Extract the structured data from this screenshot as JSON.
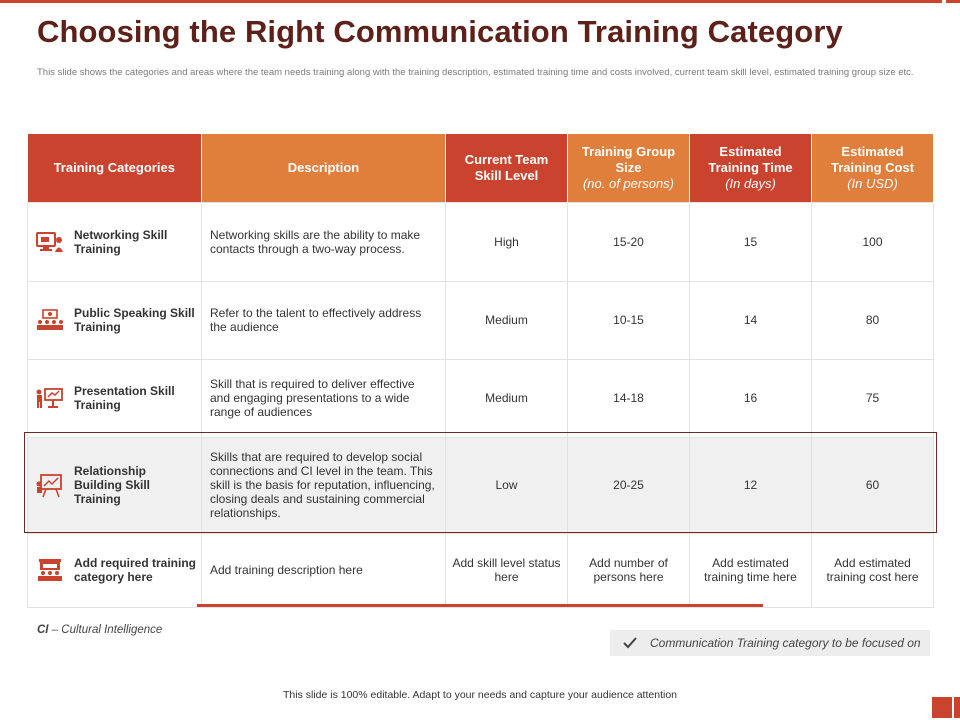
{
  "title": "Choosing the Right Communication Training Category",
  "subtitle": "This slide shows the categories and areas where the team needs training along with the training description, estimated training time and costs involved, current team skill level, estimated training group size etc.",
  "colors": {
    "accent_red": "#c9432f",
    "accent_orange": "#e07f3c",
    "title_brown": "#5e2119"
  },
  "table": {
    "headers": [
      {
        "label": "Training Categories",
        "sub": ""
      },
      {
        "label": "Description",
        "sub": ""
      },
      {
        "label": "Current Team Skill Level",
        "sub": ""
      },
      {
        "label": "Training Group Size",
        "sub": "(no. of persons)"
      },
      {
        "label": "Estimated Training Time",
        "sub": "(In days)"
      },
      {
        "label": "Estimated Training Cost",
        "sub": "(In USD)"
      }
    ],
    "rows": [
      {
        "icon": "computer-person-icon",
        "category": "Networking Skill Training",
        "description": "Networking skills are the ability to make contacts through a two-way process.",
        "skill": "High",
        "size": "15-20",
        "time": "15",
        "cost": "100"
      },
      {
        "icon": "speaker-audience-icon",
        "category": "Public Speaking Skill Training",
        "description": "Refer to the talent to effectively address the audience",
        "skill": "Medium",
        "size": "10-15",
        "time": "14",
        "cost": "80"
      },
      {
        "icon": "presenter-board-icon",
        "category": "Presentation Skill Training",
        "description": " Skill that is required to deliver effective and engaging presentations to a wide range of audiences",
        "skill": "Medium",
        "size": "14-18",
        "time": "16",
        "cost": "75"
      },
      {
        "icon": "presentation-easel-icon",
        "category": "Relationship Building Skill Training",
        "description": "Skills that are required to develop social connections and CI level in the team. This skill is the basis for reputation, influencing, closing deals and sustaining commercial relationships.",
        "skill": "Low",
        "size": "20-25",
        "time": "12",
        "cost": "60"
      },
      {
        "icon": "classroom-icon",
        "category": "Add required training category here",
        "description": "Add training description here",
        "skill": "Add skill level status here",
        "size": "Add number of persons here",
        "time": "Add estimated training time here",
        "cost": "Add estimated training cost here"
      }
    ]
  },
  "ci_note": {
    "abbr": "CI",
    "text": " – Cultural Intelligence"
  },
  "legend": {
    "icon": "check-icon",
    "text": "Communication Training category to be focused on"
  },
  "footer": "This slide is 100% editable. Adapt to your needs and capture your audience attention"
}
